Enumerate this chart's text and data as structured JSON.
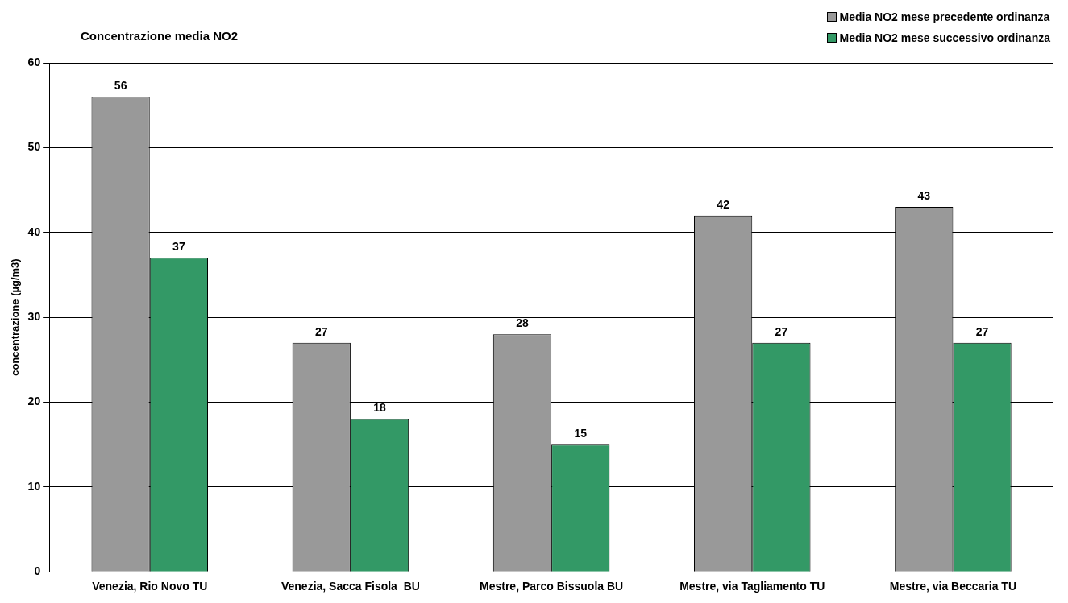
{
  "chart_data": {
    "type": "bar",
    "title": "Concentrazione media NO2",
    "ylabel": "concentrazione (µg/m3)",
    "categories": [
      "Venezia, Rio Novo TU",
      "Venezia, Sacca Fisola  BU",
      "Mestre, Parco Bissuola BU",
      "Mestre, via Tagliamento TU",
      "Mestre, via Beccaria TU"
    ],
    "series": [
      {
        "name": "Media NO2 mese precedente ordinanza",
        "color": "#999999",
        "values": [
          56,
          27,
          28,
          42,
          43
        ]
      },
      {
        "name": "Media NO2 mese successivo ordinanza",
        "color": "#339966",
        "values": [
          37,
          18,
          15,
          27,
          27
        ]
      }
    ],
    "ylim": [
      0,
      60
    ],
    "yticks": [
      0,
      10,
      20,
      30,
      40,
      50,
      60
    ],
    "grid": "y",
    "legend": "top right",
    "data_labels": true
  }
}
